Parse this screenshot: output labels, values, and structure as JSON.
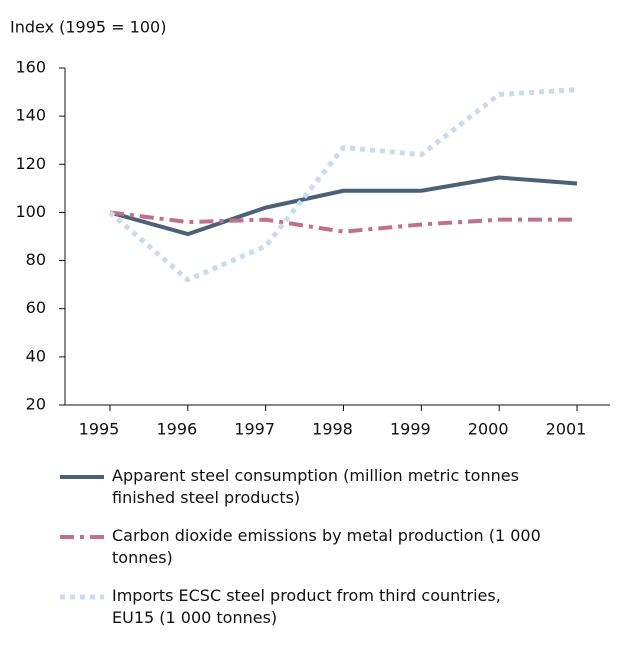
{
  "chart_data": {
    "type": "line",
    "y_label": "Index (1995 = 100)",
    "categories": [
      "1995",
      "1996",
      "1997",
      "1998",
      "1999",
      "2000",
      "2001"
    ],
    "series": [
      {
        "name": "Apparent steel consumption (million metric tonnes finished steel products)",
        "color": "#4a6278",
        "style": "solid",
        "values": [
          100,
          91,
          102,
          109,
          109,
          114.5,
          112
        ]
      },
      {
        "name": "Carbon dioxide emissions by metal production (1 000 tonnes)",
        "color": "#c0708a",
        "style": "dashdot",
        "values": [
          100,
          96,
          97,
          92,
          95,
          97,
          97
        ]
      },
      {
        "name": "Imports ECSC steel product from third countries, EU15 (1 000 tonnes)",
        "color": "#c8dcea",
        "style": "dotted",
        "values": [
          100,
          72,
          86,
          127,
          124,
          149,
          151
        ]
      }
    ],
    "ylim": [
      20,
      160
    ],
    "yticks": [
      20,
      40,
      60,
      80,
      100,
      120,
      140,
      160
    ],
    "grid": false
  }
}
